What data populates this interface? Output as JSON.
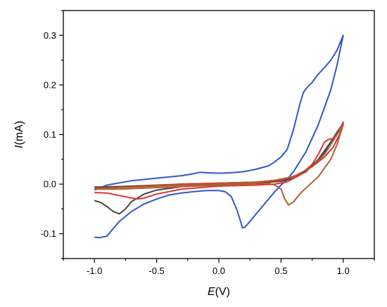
{
  "chart_data": {
    "type": "line",
    "title": "",
    "xlabel": {
      "symbol": "E",
      "unit": "(V)"
    },
    "ylabel": {
      "symbol": "I",
      "unit": "(mA)"
    },
    "xlim": [
      -1.25,
      1.25
    ],
    "ylim": [
      -0.15,
      0.35
    ],
    "xticks": [
      -1.0,
      -0.5,
      0.0,
      0.5,
      1.0
    ],
    "xtick_labels": [
      "-1.0",
      "-0.5",
      "0.0",
      "0.5",
      "1.0"
    ],
    "yticks": [
      -0.1,
      0.0,
      0.1,
      0.2,
      0.3
    ],
    "ytick_labels": [
      "-0.1",
      "0.0",
      "0.1",
      "0.2",
      "0.3"
    ],
    "grid": false,
    "legend": "none",
    "series": [
      {
        "color": "#3355cc",
        "points": [
          [
            -1.0,
            -0.107
          ],
          [
            -0.96,
            -0.108
          ],
          [
            -0.9,
            -0.105
          ],
          [
            -0.85,
            -0.09
          ],
          [
            -0.8,
            -0.075
          ],
          [
            -0.7,
            -0.055
          ],
          [
            -0.6,
            -0.04
          ],
          [
            -0.5,
            -0.03
          ],
          [
            -0.4,
            -0.022
          ],
          [
            -0.3,
            -0.018
          ],
          [
            -0.2,
            -0.015
          ],
          [
            -0.1,
            -0.013
          ],
          [
            0.0,
            -0.013
          ],
          [
            0.05,
            -0.015
          ],
          [
            0.1,
            -0.025
          ],
          [
            0.15,
            -0.055
          ],
          [
            0.19,
            -0.088
          ],
          [
            0.21,
            -0.087
          ],
          [
            0.25,
            -0.075
          ],
          [
            0.3,
            -0.06
          ],
          [
            0.35,
            -0.045
          ],
          [
            0.4,
            -0.03
          ],
          [
            0.45,
            -0.015
          ],
          [
            0.5,
            -0.002
          ],
          [
            0.55,
            0.01
          ],
          [
            0.6,
            0.025
          ],
          [
            0.7,
            0.065
          ],
          [
            0.8,
            0.12
          ],
          [
            0.9,
            0.19
          ],
          [
            0.95,
            0.24
          ],
          [
            1.0,
            0.3
          ],
          [
            0.95,
            0.27
          ],
          [
            0.9,
            0.25
          ],
          [
            0.85,
            0.235
          ],
          [
            0.8,
            0.222
          ],
          [
            0.75,
            0.205
          ],
          [
            0.72,
            0.198
          ],
          [
            0.68,
            0.185
          ],
          [
            0.65,
            0.16
          ],
          [
            0.6,
            0.11
          ],
          [
            0.55,
            0.07
          ],
          [
            0.5,
            0.055
          ],
          [
            0.45,
            0.045
          ],
          [
            0.4,
            0.037
          ],
          [
            0.3,
            0.03
          ],
          [
            0.2,
            0.025
          ],
          [
            0.1,
            0.023
          ],
          [
            0.0,
            0.022
          ],
          [
            -0.1,
            0.023
          ],
          [
            -0.15,
            0.024
          ],
          [
            -0.2,
            0.021
          ],
          [
            -0.3,
            0.017
          ],
          [
            -0.5,
            0.012
          ],
          [
            -0.7,
            0.007
          ],
          [
            -0.9,
            -0.002
          ],
          [
            -1.0,
            -0.012
          ]
        ]
      },
      {
        "color": "#444444",
        "points": [
          [
            -1.0,
            -0.033
          ],
          [
            -0.95,
            -0.037
          ],
          [
            -0.9,
            -0.045
          ],
          [
            -0.85,
            -0.055
          ],
          [
            -0.8,
            -0.06
          ],
          [
            -0.75,
            -0.05
          ],
          [
            -0.7,
            -0.035
          ],
          [
            -0.6,
            -0.02
          ],
          [
            -0.5,
            -0.012
          ],
          [
            -0.3,
            -0.005
          ],
          [
            0.0,
            -0.001
          ],
          [
            0.3,
            0.002
          ],
          [
            0.5,
            0.006
          ],
          [
            0.6,
            0.012
          ],
          [
            0.7,
            0.025
          ],
          [
            0.8,
            0.05
          ],
          [
            0.9,
            0.08
          ],
          [
            0.95,
            0.1
          ],
          [
            1.0,
            0.122
          ],
          [
            0.95,
            0.105
          ],
          [
            0.9,
            0.085
          ],
          [
            0.8,
            0.05
          ],
          [
            0.7,
            0.025
          ],
          [
            0.6,
            0.012
          ],
          [
            0.5,
            0.007
          ],
          [
            0.3,
            0.004
          ],
          [
            0.0,
            0.002
          ],
          [
            -0.3,
            0.0
          ],
          [
            -0.6,
            -0.003
          ],
          [
            -0.8,
            -0.005
          ],
          [
            -1.0,
            -0.006
          ]
        ]
      },
      {
        "color": "#dd3333",
        "points": [
          [
            -1.0,
            -0.017
          ],
          [
            -0.9,
            -0.018
          ],
          [
            -0.8,
            -0.023
          ],
          [
            -0.7,
            -0.028
          ],
          [
            -0.65,
            -0.03
          ],
          [
            -0.6,
            -0.028
          ],
          [
            -0.5,
            -0.02
          ],
          [
            -0.3,
            -0.01
          ],
          [
            0.0,
            -0.004
          ],
          [
            0.3,
            -0.002
          ],
          [
            0.45,
            0.0
          ],
          [
            0.55,
            0.005
          ],
          [
            0.65,
            0.018
          ],
          [
            0.75,
            0.04
          ],
          [
            0.8,
            0.06
          ],
          [
            0.85,
            0.085
          ],
          [
            0.88,
            0.09
          ],
          [
            0.92,
            0.092
          ],
          [
            0.95,
            0.1
          ],
          [
            1.0,
            0.125
          ],
          [
            0.97,
            0.1
          ],
          [
            0.92,
            0.075
          ],
          [
            0.85,
            0.055
          ],
          [
            0.75,
            0.035
          ],
          [
            0.65,
            0.02
          ],
          [
            0.5,
            0.008
          ],
          [
            0.3,
            0.004
          ],
          [
            0.0,
            0.002
          ],
          [
            -0.3,
            0.0
          ],
          [
            -0.6,
            -0.004
          ],
          [
            -0.8,
            -0.007
          ],
          [
            -1.0,
            -0.008
          ]
        ]
      },
      {
        "color": "#b06030",
        "points": [
          [
            -1.0,
            -0.01
          ],
          [
            -0.8,
            -0.01
          ],
          [
            -0.6,
            -0.008
          ],
          [
            -0.3,
            -0.005
          ],
          [
            0.0,
            -0.002
          ],
          [
            0.2,
            0.0
          ],
          [
            0.4,
            0.002
          ],
          [
            0.45,
            -0.002
          ],
          [
            0.5,
            -0.01
          ],
          [
            0.53,
            -0.03
          ],
          [
            0.56,
            -0.042
          ],
          [
            0.6,
            -0.036
          ],
          [
            0.65,
            -0.02
          ],
          [
            0.7,
            -0.008
          ],
          [
            0.8,
            0.015
          ],
          [
            0.9,
            0.05
          ],
          [
            0.95,
            0.08
          ],
          [
            1.0,
            0.12
          ],
          [
            0.95,
            0.1
          ],
          [
            0.85,
            0.06
          ],
          [
            0.75,
            0.035
          ],
          [
            0.6,
            0.015
          ],
          [
            0.45,
            0.008
          ],
          [
            0.3,
            0.004
          ],
          [
            0.0,
            0.001
          ],
          [
            -0.3,
            -0.002
          ],
          [
            -0.6,
            -0.005
          ],
          [
            -0.8,
            -0.007
          ],
          [
            -1.0,
            -0.009
          ]
        ]
      }
    ]
  }
}
